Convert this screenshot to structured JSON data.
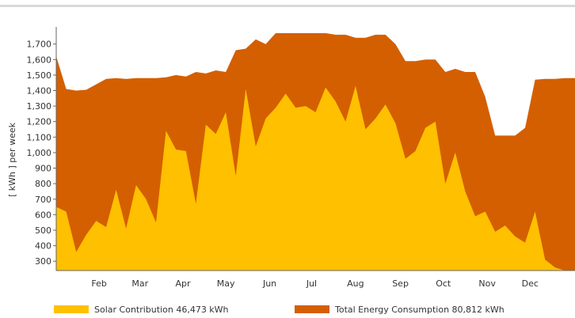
{
  "chart_data": {
    "type": "area",
    "ylabel": "[ kWh ] per week",
    "ylim": [
      240,
      1790
    ],
    "yticks": [
      300,
      400,
      500,
      600,
      700,
      800,
      900,
      1000,
      1100,
      1200,
      1300,
      1400,
      1500,
      1600,
      1700
    ],
    "ytick_labels": [
      "300",
      "400",
      "500",
      "600",
      "700",
      "800",
      "900",
      "1,000",
      "1,100",
      "1,200",
      "1,300",
      "1,400",
      "1,500",
      "1,600",
      "1,700"
    ],
    "x_domain": [
      1,
      53
    ],
    "month_ticks": [
      {
        "label": "Feb",
        "x": 5.3
      },
      {
        "label": "Mar",
        "x": 9.4
      },
      {
        "label": "Apr",
        "x": 13.7
      },
      {
        "label": "May",
        "x": 18.0
      },
      {
        "label": "Jun",
        "x": 22.4
      },
      {
        "label": "Jul",
        "x": 26.6
      },
      {
        "label": "Aug",
        "x": 31.0
      },
      {
        "label": "Sep",
        "x": 35.5
      },
      {
        "label": "Oct",
        "x": 39.8
      },
      {
        "label": "Nov",
        "x": 44.2
      },
      {
        "label": "Dec",
        "x": 48.5
      }
    ],
    "grid": false,
    "legend_position": "bottom",
    "series": [
      {
        "name": "Total Energy Consumption 80,812 kWh",
        "color": "#d45f00",
        "values": [
          [
            1,
            1620
          ],
          [
            2,
            1410
          ],
          [
            3,
            1400
          ],
          [
            4,
            1405
          ],
          [
            5,
            1440
          ],
          [
            6,
            1475
          ],
          [
            7,
            1480
          ],
          [
            8,
            1475
          ],
          [
            9,
            1480
          ],
          [
            10,
            1480
          ],
          [
            11,
            1480
          ],
          [
            12,
            1485
          ],
          [
            13,
            1500
          ],
          [
            14,
            1490
          ],
          [
            15,
            1520
          ],
          [
            16,
            1510
          ],
          [
            17,
            1530
          ],
          [
            18,
            1520
          ],
          [
            19,
            1660
          ],
          [
            20,
            1670
          ],
          [
            21,
            1730
          ],
          [
            22,
            1700
          ],
          [
            23,
            1770
          ],
          [
            24,
            1770
          ],
          [
            25,
            1770
          ],
          [
            26,
            1770
          ],
          [
            27,
            1770
          ],
          [
            28,
            1770
          ],
          [
            29,
            1760
          ],
          [
            30,
            1760
          ],
          [
            31,
            1740
          ],
          [
            32,
            1740
          ],
          [
            33,
            1760
          ],
          [
            34,
            1760
          ],
          [
            35,
            1700
          ],
          [
            36,
            1590
          ],
          [
            37,
            1590
          ],
          [
            38,
            1600
          ],
          [
            39,
            1600
          ],
          [
            40,
            1520
          ],
          [
            41,
            1540
          ],
          [
            42,
            1520
          ],
          [
            43,
            1520
          ],
          [
            44,
            1360
          ],
          [
            45,
            1110
          ],
          [
            46,
            1110
          ],
          [
            47,
            1110
          ],
          [
            48,
            1160
          ],
          [
            49,
            1470
          ],
          [
            50,
            1475
          ],
          [
            51,
            1475
          ],
          [
            52,
            1480
          ],
          [
            53,
            1480
          ]
        ]
      },
      {
        "name": "Solar Contribution 46,473 kWh",
        "color": "#ffc000",
        "values": [
          [
            1,
            650
          ],
          [
            2,
            620
          ],
          [
            3,
            360
          ],
          [
            4,
            470
          ],
          [
            5,
            560
          ],
          [
            6,
            520
          ],
          [
            7,
            760
          ],
          [
            8,
            510
          ],
          [
            9,
            790
          ],
          [
            10,
            700
          ],
          [
            11,
            550
          ],
          [
            12,
            1140
          ],
          [
            13,
            1020
          ],
          [
            14,
            1010
          ],
          [
            15,
            670
          ],
          [
            16,
            1180
          ],
          [
            17,
            1120
          ],
          [
            18,
            1260
          ],
          [
            19,
            850
          ],
          [
            20,
            1410
          ],
          [
            21,
            1040
          ],
          [
            22,
            1220
          ],
          [
            23,
            1290
          ],
          [
            24,
            1380
          ],
          [
            25,
            1290
          ],
          [
            26,
            1300
          ],
          [
            27,
            1260
          ],
          [
            28,
            1420
          ],
          [
            29,
            1330
          ],
          [
            30,
            1200
          ],
          [
            31,
            1430
          ],
          [
            32,
            1150
          ],
          [
            33,
            1220
          ],
          [
            34,
            1310
          ],
          [
            35,
            1190
          ],
          [
            36,
            960
          ],
          [
            37,
            1010
          ],
          [
            38,
            1160
          ],
          [
            39,
            1200
          ],
          [
            40,
            800
          ],
          [
            41,
            1000
          ],
          [
            42,
            750
          ],
          [
            43,
            590
          ],
          [
            44,
            620
          ],
          [
            45,
            490
          ],
          [
            46,
            530
          ],
          [
            47,
            460
          ],
          [
            48,
            420
          ],
          [
            49,
            620
          ],
          [
            50,
            310
          ],
          [
            51,
            260
          ],
          [
            52,
            240
          ],
          [
            53,
            240
          ]
        ]
      }
    ]
  }
}
